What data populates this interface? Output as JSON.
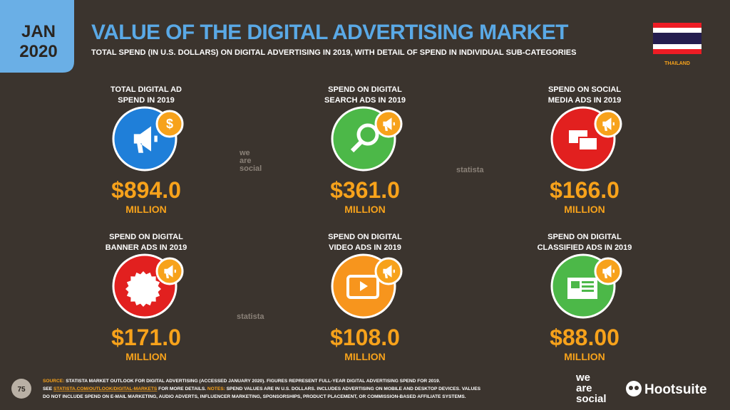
{
  "header": {
    "date_line_1": "JAN",
    "date_line_2": "2020",
    "title": "VALUE OF THE DIGITAL ADVERTISING MARKET",
    "subtitle": "TOTAL SPEND (IN U.S. DOLLARS) ON DIGITAL ADVERTISING IN 2019, WITH DETAIL OF SPEND IN INDIVIDUAL SUB-CATEGORIES",
    "country": "THAILAND"
  },
  "cards": [
    {
      "label": [
        "TOTAL DIGITAL AD",
        "SPEND IN 2019"
      ],
      "value": "$894.0",
      "unit": "MILLION"
    },
    {
      "label": [
        "SPEND ON DIGITAL",
        "SEARCH ADS IN 2019"
      ],
      "value": "$361.0",
      "unit": "MILLION"
    },
    {
      "label": [
        "SPEND ON SOCIAL",
        "MEDIA ADS IN 2019"
      ],
      "value": "$166.0",
      "unit": "MILLION"
    },
    {
      "label": [
        "SPEND ON DIGITAL",
        "BANNER ADS IN 2019"
      ],
      "value": "$171.0",
      "unit": "MILLION"
    },
    {
      "label": [
        "SPEND ON DIGITAL",
        "VIDEO ADS IN 2019"
      ],
      "value": "$108.0",
      "unit": "MILLION"
    },
    {
      "label": [
        "SPEND ON DIGITAL",
        "CLASSIFIED ADS IN 2019"
      ],
      "value": "$88.00",
      "unit": "MILLION"
    }
  ],
  "watermarks": {
    "agency": [
      "we",
      "are",
      "social"
    ],
    "data_source": "statista"
  },
  "footer": {
    "page": "75",
    "source_label": "SOURCE:",
    "source_text": " STATISTA MARKET OUTLOOK FOR DIGITAL ADVERTISING (ACCESSED JANUARY 2020). FIGURES REPRESENT FULL-YEAR DIGITAL ADVERTISING SPEND FOR 2019.",
    "see": "SEE ",
    "link": "STATISTA.COM/OUTLOOK/DIGITAL-MARKETS",
    "details": " FOR MORE DETAILS. ",
    "notes_label": "NOTES:",
    "notes_text_1": " SPEND VALUES ARE IN U.S. DOLLARS. INCLUDES ADVERTISING ON MOBILE AND DESKTOP DEVICES. VALUES",
    "notes_text_2": "DO NOT INCLUDE SPEND ON E-MAIL MARKETING, AUDIO ADVERTS, INFLUENCER MARKETING, SPONSORSHIPS, PRODUCT PLACEMENT, OR COMMISSION-BASED AFFILIATE SYSTEMS.",
    "brand": "Hootsuite"
  }
}
